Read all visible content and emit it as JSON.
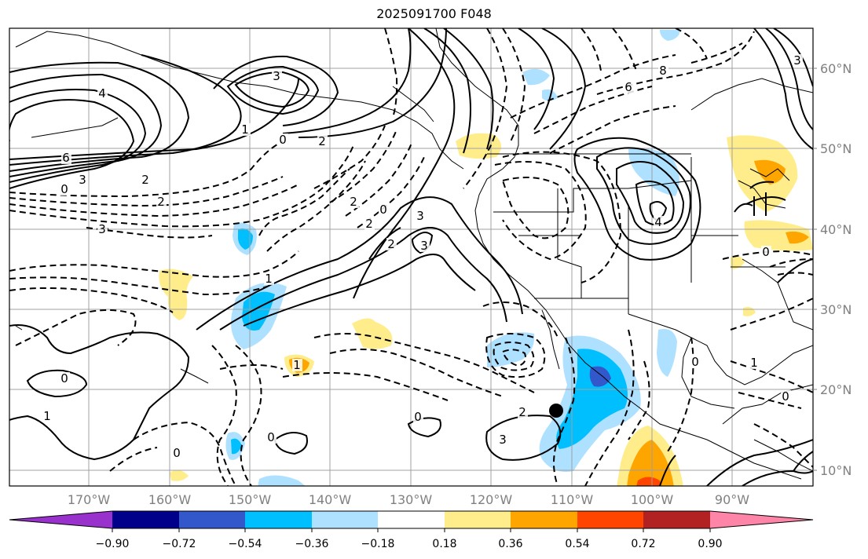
{
  "title": "2025091700 F048",
  "lat_labels": [
    "60°N",
    "50°N",
    "40°N",
    "30°N",
    "20°N",
    "10°N"
  ],
  "lon_labels": [
    "170°W",
    "160°W",
    "150°W",
    "140°W",
    "130°W",
    "120°W",
    "110°W",
    "100°W",
    "90°W"
  ],
  "colorbar": {
    "colors": [
      "#9932cc",
      "#00008b",
      "#3358cc",
      "#00bfff",
      "#aee0ff",
      "#ffffff",
      "#ffed8c",
      "#ffa500",
      "#ff4500",
      "#b22222",
      "#ff85a8"
    ],
    "tick_labels": [
      "−0.90",
      "−0.72",
      "−0.54",
      "−0.36",
      "−0.18",
      "0.18",
      "0.36",
      "0.54",
      "0.72",
      "0.90"
    ]
  },
  "contour_labels": [
    "3",
    "4",
    "6",
    "3",
    "2",
    "0",
    "1",
    "2",
    "0",
    "2",
    "3",
    "2",
    "3",
    "2",
    "0",
    "2",
    "3",
    "1",
    "1",
    "0",
    "1",
    "0",
    "0",
    "0",
    "2",
    "3",
    "4",
    "8",
    "6",
    "3",
    "0",
    "0",
    "1",
    "0"
  ],
  "marker": "storm-center"
}
